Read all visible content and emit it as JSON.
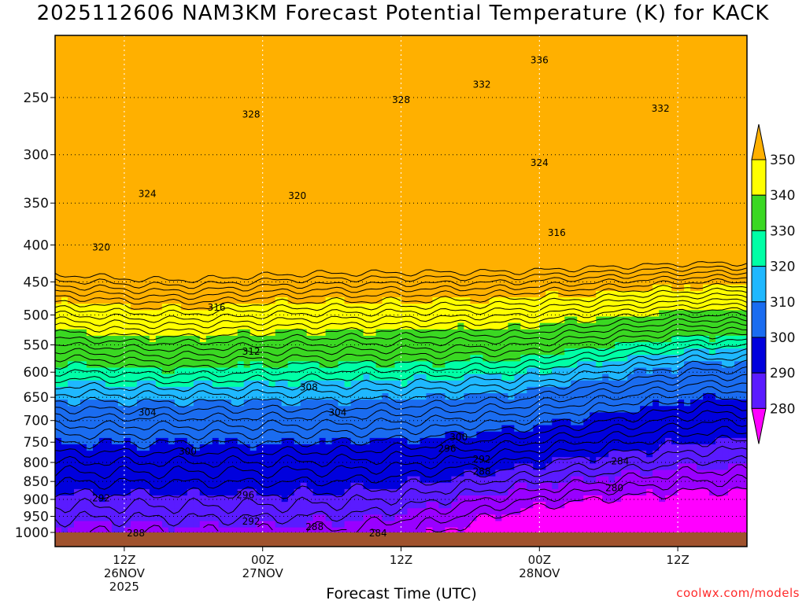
{
  "title": "2025112606 NAM3KM Forecast Potential Temperature (K) for KACK",
  "xlabel": "Forecast Time (UTC)",
  "credit": "coolwx.com/models",
  "chart_data": {
    "type": "heatmap",
    "title": "2025112606 NAM3KM Forecast Potential Temperature (K) for KACK",
    "xlabel": "Forecast Time (UTC)",
    "ylabel": "",
    "x_range_hours": [
      0,
      60
    ],
    "y_range_hPa": [
      1000,
      200
    ],
    "y_scale": "log-pressure",
    "grid": true,
    "y_ticks": [
      250,
      300,
      350,
      400,
      450,
      500,
      550,
      600,
      650,
      700,
      750,
      800,
      850,
      900,
      950,
      1000
    ],
    "x_ticks": [
      {
        "hour": 6,
        "lines": [
          "12Z",
          "26NOV",
          "2025"
        ]
      },
      {
        "hour": 18,
        "lines": [
          "00Z",
          "27NOV"
        ]
      },
      {
        "hour": 30,
        "lines": [
          "12Z"
        ]
      },
      {
        "hour": 42,
        "lines": [
          "00Z",
          "28NOV"
        ]
      },
      {
        "hour": 54,
        "lines": [
          "12Z"
        ]
      }
    ],
    "colorbar": {
      "levels": [
        280,
        290,
        300,
        310,
        320,
        330,
        340,
        350
      ],
      "colors": [
        "#ff00ff",
        "#9900ff",
        "#5a1bff",
        "#0000dd",
        "#1a6cf0",
        "#1fb8ff",
        "#00ffa6",
        "#3ad822",
        "#ffff00",
        "#ffb000"
      ]
    },
    "contour_labels": [
      {
        "value": "336",
        "hour": 42,
        "p": 222
      },
      {
        "value": "332",
        "hour": 37,
        "p": 240
      },
      {
        "value": "332",
        "hour": 52.5,
        "p": 259
      },
      {
        "value": "328",
        "hour": 30,
        "p": 252
      },
      {
        "value": "328",
        "hour": 17,
        "p": 264
      },
      {
        "value": "324",
        "hour": 8,
        "p": 340
      },
      {
        "value": "324",
        "hour": 42,
        "p": 308
      },
      {
        "value": "320",
        "hour": 21,
        "p": 342
      },
      {
        "value": "320",
        "hour": 4,
        "p": 403
      },
      {
        "value": "316",
        "hour": 43.5,
        "p": 385
      },
      {
        "value": "316",
        "hour": 14,
        "p": 488
      },
      {
        "value": "312",
        "hour": 17,
        "p": 562
      },
      {
        "value": "308",
        "hour": 22,
        "p": 630
      },
      {
        "value": "304",
        "hour": 8,
        "p": 682
      },
      {
        "value": "304",
        "hour": 24.5,
        "p": 682
      },
      {
        "value": "300",
        "hour": 11.5,
        "p": 772
      },
      {
        "value": "300",
        "hour": 35,
        "p": 738
      },
      {
        "value": "296",
        "hour": 34,
        "p": 766
      },
      {
        "value": "292",
        "hour": 37,
        "p": 792
      },
      {
        "value": "288",
        "hour": 37,
        "p": 823
      },
      {
        "value": "284",
        "hour": 49,
        "p": 797
      },
      {
        "value": "280",
        "hour": 48.5,
        "p": 868
      },
      {
        "value": "296",
        "hour": 16.5,
        "p": 888
      },
      {
        "value": "292",
        "hour": 4,
        "p": 897
      },
      {
        "value": "292",
        "hour": 17,
        "p": 966
      },
      {
        "value": "288",
        "hour": 22.5,
        "p": 982
      },
      {
        "value": "288",
        "hour": 7,
        "p": 1002
      },
      {
        "value": "284",
        "hour": 28,
        "p": 1002
      }
    ]
  }
}
